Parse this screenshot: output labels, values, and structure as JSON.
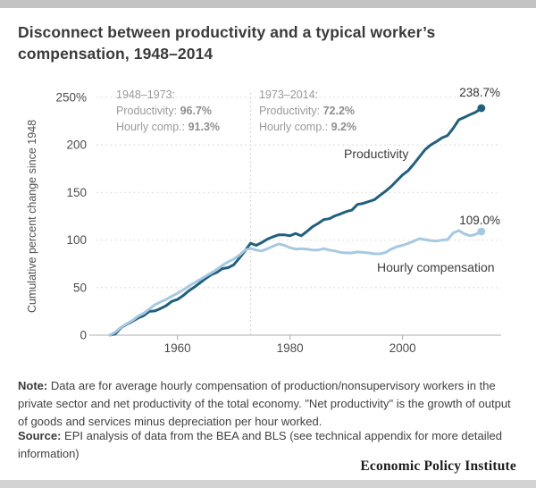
{
  "header": {
    "title": "Disconnect between productivity and a typical worker’s compensation, 1948–2014"
  },
  "note": {
    "label": "Note:",
    "text": " Data are for average hourly compensation of production/nonsupervisory workers in the private sector and net productivity of the total economy. \"Net productivity\" is the growth of output of goods and services minus depreciation per hour worked."
  },
  "source": {
    "label": "Source:",
    "text": " EPI analysis of data from the BEA and BLS (see technical appendix for more detailed information)"
  },
  "branding": {
    "wordmark": "Economic Policy Institute"
  },
  "colors": {
    "productivity": "#20607f",
    "compensation": "#a6c9e2",
    "annotation_gray": "#9a9a9a",
    "annotation_value_gray": "#8e8e8e",
    "grid": "#dcdcdc",
    "axis": "#c8c8c8",
    "tick_text": "#4c4c4c",
    "series_label_text": "#3d3d3d",
    "end_label_text": "#333333"
  },
  "chart_data": {
    "type": "line",
    "title": "Disconnect between productivity and a typical worker’s compensation, 1948–2014",
    "ylabel": "Cumulative percent change since 1948",
    "xlabel": "",
    "ylim": [
      0,
      250
    ],
    "xlim": [
      1948,
      2014
    ],
    "grid": "dotted horizontal",
    "legend_position": "inline labels on lines",
    "reference_line_year": 1973,
    "y_ticks": [
      {
        "value": 250,
        "label": "250%"
      },
      {
        "value": 200,
        "label": "200"
      },
      {
        "value": 150,
        "label": "150"
      },
      {
        "value": 100,
        "label": "100"
      },
      {
        "value": 50,
        "label": "50"
      },
      {
        "value": 0,
        "label": "0"
      }
    ],
    "x_ticks": [
      {
        "value": 1960,
        "label": "1960"
      },
      {
        "value": 1980,
        "label": "1980"
      },
      {
        "value": 2000,
        "label": "2000"
      }
    ],
    "annotations": [
      {
        "period": "1948–1973:",
        "productivity_label": "Productivity:",
        "productivity_value": "96.7%",
        "comp_label": "Hourly comp.:",
        "comp_value": "91.3%"
      },
      {
        "period": "1973–2014:",
        "productivity_label": "Productivity:",
        "productivity_value": "72.2%",
        "comp_label": "Hourly comp.:",
        "comp_value": "9.2%"
      }
    ],
    "x": [
      1948,
      1949,
      1950,
      1951,
      1952,
      1953,
      1954,
      1955,
      1956,
      1957,
      1958,
      1959,
      1960,
      1961,
      1962,
      1963,
      1964,
      1965,
      1966,
      1967,
      1968,
      1969,
      1970,
      1971,
      1972,
      1973,
      1974,
      1975,
      1976,
      1977,
      1978,
      1979,
      1980,
      1981,
      1982,
      1983,
      1984,
      1985,
      1986,
      1987,
      1988,
      1989,
      1990,
      1991,
      1992,
      1993,
      1994,
      1995,
      1996,
      1997,
      1998,
      1999,
      2000,
      2001,
      2002,
      2003,
      2004,
      2005,
      2006,
      2007,
      2008,
      2009,
      2010,
      2011,
      2012,
      2013,
      2014
    ],
    "series": [
      {
        "name": "Productivity",
        "color": "#20607f",
        "end_label": "238.7%",
        "values": [
          0.0,
          1.5,
          8.0,
          11.5,
          14.5,
          18.0,
          20.5,
          25.0,
          25.5,
          28.0,
          31.0,
          35.5,
          37.5,
          41.5,
          46.5,
          50.5,
          55.0,
          59.5,
          63.5,
          66.0,
          70.0,
          71.0,
          74.0,
          81.0,
          88.5,
          96.7,
          94.5,
          97.5,
          101.0,
          103.5,
          105.5,
          105.5,
          104.5,
          107.0,
          104.5,
          109.0,
          114.0,
          117.5,
          121.5,
          122.5,
          125.5,
          127.5,
          130.0,
          131.5,
          137.5,
          138.5,
          140.5,
          142.5,
          147.0,
          151.5,
          156.5,
          162.5,
          168.5,
          173.0,
          180.0,
          187.5,
          195.0,
          200.0,
          203.5,
          207.5,
          210.0,
          217.5,
          226.5,
          229.0,
          232.0,
          234.5,
          238.7
        ]
      },
      {
        "name": "Hourly compensation",
        "color": "#a6c9e2",
        "end_label": "109.0%",
        "values": [
          0.0,
          3.5,
          8.5,
          12.0,
          15.5,
          20.0,
          23.0,
          27.5,
          32.0,
          35.0,
          37.5,
          41.0,
          44.0,
          47.5,
          51.5,
          55.0,
          58.5,
          62.0,
          65.5,
          69.0,
          73.5,
          77.0,
          80.0,
          84.0,
          89.5,
          91.3,
          89.5,
          88.5,
          91.0,
          93.5,
          96.0,
          94.5,
          92.0,
          90.5,
          91.0,
          90.5,
          89.5,
          89.5,
          91.0,
          89.5,
          88.5,
          87.0,
          86.5,
          86.5,
          87.5,
          87.0,
          86.5,
          85.5,
          85.5,
          87.0,
          90.5,
          93.0,
          94.5,
          96.5,
          99.0,
          101.5,
          100.5,
          99.5,
          99.0,
          100.0,
          100.5,
          107.5,
          110.0,
          106.5,
          104.5,
          106.0,
          109.0
        ]
      }
    ]
  }
}
